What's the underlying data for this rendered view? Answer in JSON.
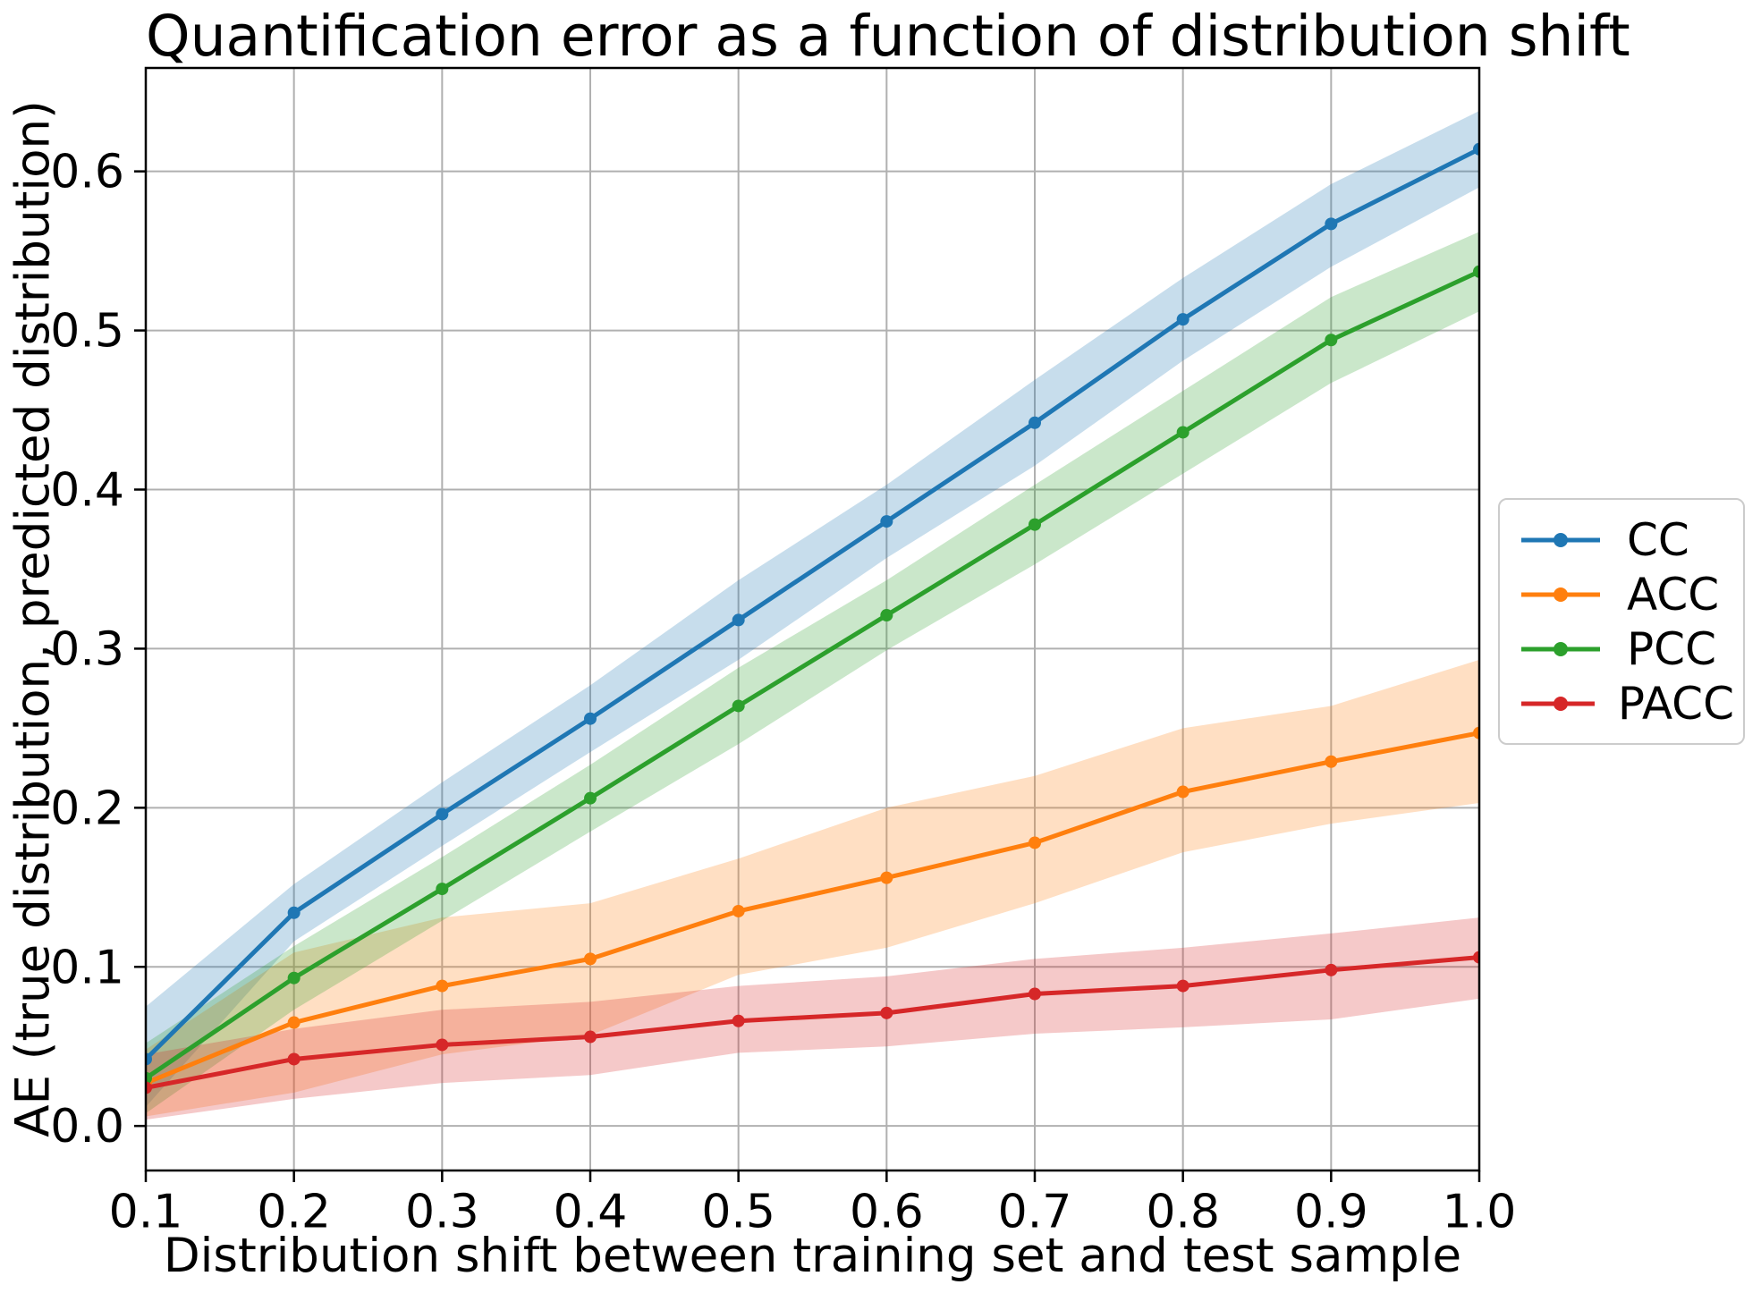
{
  "title": "Quantification error as a function of distribution shift",
  "xlabel": "Distribution shift between training set and test sample",
  "ylabel": "AE (true distribution, predicted distribution)",
  "legend": {
    "position": "center-right-outside",
    "entries": [
      {
        "label": "CC",
        "color": "#1f77b4"
      },
      {
        "label": "ACC",
        "color": "#ff7f0e"
      },
      {
        "label": "PCC",
        "color": "#2ca02c"
      },
      {
        "label": "PACC",
        "color": "#d62728"
      }
    ]
  },
  "axes": {
    "xlim": [
      0.1,
      1.0
    ],
    "ylim": [
      -0.028,
      0.665
    ],
    "xticks": [
      {
        "value": 0.1,
        "label": "0.1"
      },
      {
        "value": 0.2,
        "label": "0.2"
      },
      {
        "value": 0.3,
        "label": "0.3"
      },
      {
        "value": 0.4,
        "label": "0.4"
      },
      {
        "value": 0.5,
        "label": "0.5"
      },
      {
        "value": 0.6,
        "label": "0.6"
      },
      {
        "value": 0.7,
        "label": "0.7"
      },
      {
        "value": 0.8,
        "label": "0.8"
      },
      {
        "value": 0.9,
        "label": "0.9"
      },
      {
        "value": 1.0,
        "label": "1.0"
      }
    ],
    "yticks": [
      {
        "value": 0.0,
        "label": "0.0"
      },
      {
        "value": 0.1,
        "label": "0.1"
      },
      {
        "value": 0.2,
        "label": "0.2"
      },
      {
        "value": 0.3,
        "label": "0.3"
      },
      {
        "value": 0.4,
        "label": "0.4"
      },
      {
        "value": 0.5,
        "label": "0.5"
      },
      {
        "value": 0.6,
        "label": "0.6"
      }
    ],
    "grid": true,
    "grid_color": "#b0b0b0",
    "spine_color": "#000000",
    "tick_color": "#000000",
    "band_opacity": 0.25
  },
  "chart_data": {
    "type": "line",
    "title": "Quantification error as a function of distribution shift",
    "xlabel": "Distribution shift between training set and test sample",
    "ylabel": "AE (true distribution, predicted distribution)",
    "xlim": [
      0.1,
      1.0
    ],
    "ylim": [
      -0.028,
      0.665
    ],
    "grid": true,
    "legend_position": "center right, outside axes",
    "x": [
      0.1,
      0.2,
      0.3,
      0.4,
      0.5,
      0.6,
      0.7,
      0.8,
      0.9,
      1.0
    ],
    "series": [
      {
        "name": "CC",
        "color": "#1f77b4",
        "values": [
          0.042,
          0.134,
          0.196,
          0.256,
          0.318,
          0.38,
          0.442,
          0.507,
          0.567,
          0.614
        ],
        "band_lower": [
          0.012,
          0.116,
          0.176,
          0.235,
          0.293,
          0.357,
          0.415,
          0.481,
          0.54,
          0.59
        ],
        "band_upper": [
          0.075,
          0.152,
          0.216,
          0.277,
          0.343,
          0.403,
          0.469,
          0.533,
          0.592,
          0.638
        ]
      },
      {
        "name": "ACC",
        "color": "#ff7f0e",
        "values": [
          0.027,
          0.065,
          0.088,
          0.105,
          0.135,
          0.156,
          0.178,
          0.21,
          0.229,
          0.247
        ],
        "band_lower": [
          0.006,
          0.021,
          0.045,
          0.057,
          0.095,
          0.112,
          0.14,
          0.172,
          0.19,
          0.203
        ],
        "band_upper": [
          0.048,
          0.109,
          0.131,
          0.14,
          0.168,
          0.2,
          0.22,
          0.25,
          0.264,
          0.293
        ]
      },
      {
        "name": "PCC",
        "color": "#2ca02c",
        "values": [
          0.03,
          0.093,
          0.149,
          0.206,
          0.264,
          0.321,
          0.378,
          0.436,
          0.494,
          0.537
        ],
        "band_lower": [
          0.008,
          0.073,
          0.129,
          0.185,
          0.24,
          0.299,
          0.353,
          0.41,
          0.467,
          0.512
        ],
        "band_upper": [
          0.052,
          0.113,
          0.169,
          0.227,
          0.288,
          0.343,
          0.403,
          0.462,
          0.521,
          0.562
        ]
      },
      {
        "name": "PACC",
        "color": "#d62728",
        "values": [
          0.024,
          0.042,
          0.051,
          0.056,
          0.066,
          0.071,
          0.083,
          0.088,
          0.098,
          0.106
        ],
        "band_lower": [
          0.004,
          0.017,
          0.027,
          0.032,
          0.046,
          0.05,
          0.058,
          0.062,
          0.067,
          0.08
        ],
        "band_upper": [
          0.045,
          0.061,
          0.073,
          0.078,
          0.088,
          0.094,
          0.105,
          0.112,
          0.121,
          0.131
        ]
      }
    ]
  }
}
